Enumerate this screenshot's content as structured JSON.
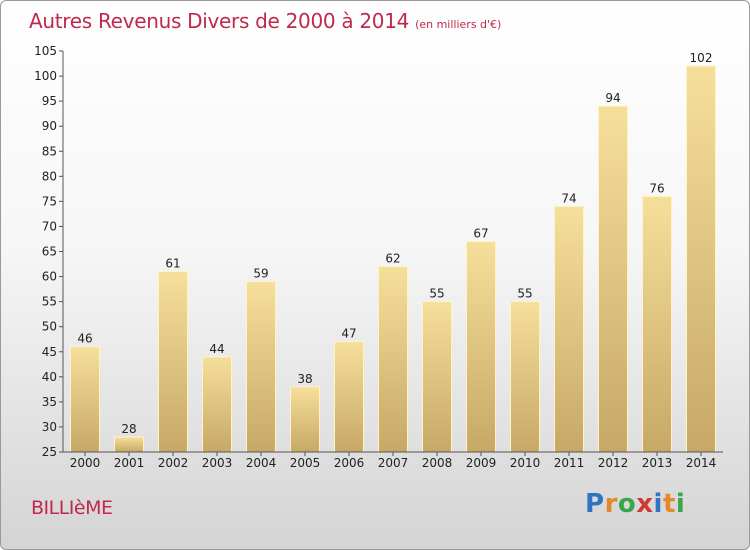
{
  "header": {
    "title": "Autres Revenus Divers de 2000 à 2014",
    "subtitle": "(en milliers d'€)"
  },
  "footer": {
    "commune": "BILLIèME",
    "brand_letters": [
      "P",
      "r",
      "o",
      "x",
      "i",
      "t",
      "i"
    ],
    "brand_colors": [
      "#2f74c0",
      "#e2892b",
      "#3aa64a",
      "#d03a2e",
      "#2f74c0",
      "#e2892b",
      "#3aa64a"
    ]
  },
  "colors": {
    "title": "#c0294b",
    "bar_light": "#f6df9b",
    "bar_dark": "#c7a867",
    "axis": "#555555"
  },
  "chart_data": {
    "type": "bar",
    "categories": [
      "2000",
      "2001",
      "2002",
      "2003",
      "2004",
      "2005",
      "2006",
      "2007",
      "2008",
      "2009",
      "2010",
      "2011",
      "2012",
      "2013",
      "2014"
    ],
    "values": [
      46,
      28,
      61,
      44,
      59,
      38,
      47,
      62,
      55,
      67,
      55,
      74,
      94,
      76,
      102
    ],
    "ylim": [
      25,
      105
    ],
    "yticks": [
      25,
      30,
      35,
      40,
      45,
      50,
      55,
      60,
      65,
      70,
      75,
      80,
      85,
      90,
      95,
      100,
      105
    ],
    "grid": false,
    "legend": "none"
  }
}
